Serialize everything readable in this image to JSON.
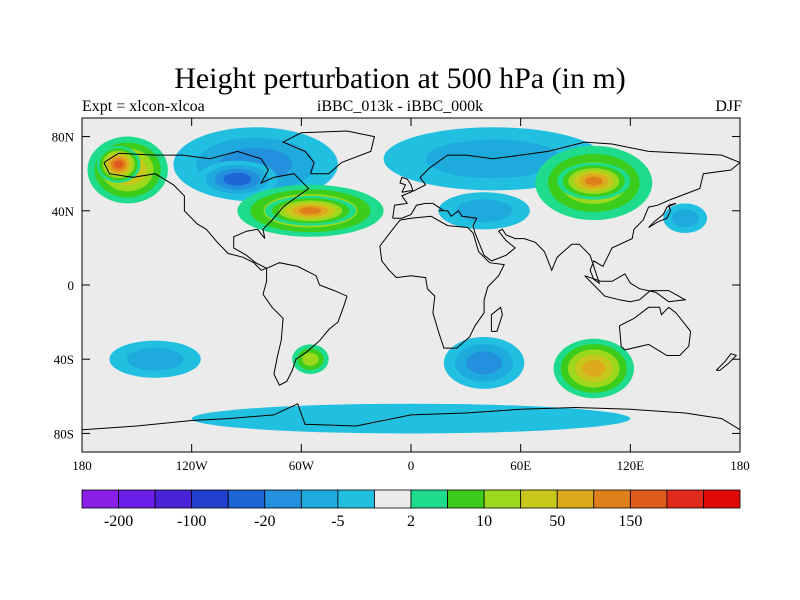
{
  "title": "Height perturbation at 500 hPa (in m)",
  "subtitle_left": "Expt = xlcon-xlcoa",
  "subtitle_center": "iBBC_013k - iBBC_000k",
  "subtitle_right": "DJF",
  "lat_ticks": [
    {
      "label": "80N",
      "lat": 80
    },
    {
      "label": "40N",
      "lat": 40
    },
    {
      "label": "0",
      "lat": 0
    },
    {
      "label": "40S",
      "lat": -40
    },
    {
      "label": "80S",
      "lat": -80
    }
  ],
  "lon_ticks": [
    {
      "label": "180",
      "lon": -180
    },
    {
      "label": "120W",
      "lon": -120
    },
    {
      "label": "60W",
      "lon": -60
    },
    {
      "label": "0",
      "lon": 0
    },
    {
      "label": "60E",
      "lon": 60
    },
    {
      "label": "120E",
      "lon": 120
    },
    {
      "label": "180",
      "lon": 180
    }
  ],
  "colorbar": {
    "colors": [
      "#8a1fe8",
      "#6a1ee8",
      "#4a22d8",
      "#2240d0",
      "#1e66d8",
      "#2290dc",
      "#1eaadc",
      "#22c0e0",
      "#ebebeb",
      "#1edc8c",
      "#3ccc1c",
      "#9cd81c",
      "#c8c81c",
      "#dcaa1c",
      "#e0801c",
      "#e05a1c",
      "#e02a1c",
      "#e00a0a"
    ],
    "labels": [
      {
        "text": "-200",
        "boundary": 1
      },
      {
        "text": "-100",
        "boundary": 3
      },
      {
        "text": "-20",
        "boundary": 5
      },
      {
        "text": "-5",
        "boundary": 7
      },
      {
        "text": "2",
        "boundary": 9
      },
      {
        "text": "10",
        "boundary": 11
      },
      {
        "text": "50",
        "boundary": 13
      },
      {
        "text": "150",
        "boundary": 15
      }
    ]
  },
  "field_regions": [
    {
      "name": "north-pacific-high",
      "lon": -155,
      "lat": 62,
      "rx": 22,
      "ry": 18,
      "level": 5
    },
    {
      "name": "north-pacific-high-core",
      "lon": -160,
      "lat": 65,
      "rx": 12,
      "ry": 10,
      "level": 7
    },
    {
      "name": "canada-low",
      "lon": -85,
      "lat": 65,
      "rx": 45,
      "ry": 20,
      "level": -3
    },
    {
      "name": "canada-low-core",
      "lon": -95,
      "lat": 57,
      "rx": 22,
      "ry": 10,
      "level": -4
    },
    {
      "name": "north-atlantic-high",
      "lon": -55,
      "lat": 40,
      "rx": 40,
      "ry": 14,
      "level": 5
    },
    {
      "name": "north-atlantic-high-core",
      "lon": -55,
      "lat": 40,
      "rx": 25,
      "ry": 8,
      "level": 6
    },
    {
      "name": "eurasia-low",
      "lon": 45,
      "lat": 68,
      "rx": 60,
      "ry": 17,
      "level": -2
    },
    {
      "name": "europe-low",
      "lon": 40,
      "lat": 40,
      "rx": 25,
      "ry": 10,
      "level": -2
    },
    {
      "name": "siberia-high",
      "lon": 100,
      "lat": 55,
      "rx": 32,
      "ry": 20,
      "level": 4
    },
    {
      "name": "siberia-high-core",
      "lon": 100,
      "lat": 56,
      "rx": 20,
      "ry": 10,
      "level": 6
    },
    {
      "name": "west-pacific-low",
      "lon": 150,
      "lat": 36,
      "rx": 12,
      "ry": 8,
      "level": -2
    },
    {
      "name": "southern-pacific-low",
      "lon": -140,
      "lat": -40,
      "rx": 25,
      "ry": 10,
      "level": -2
    },
    {
      "name": "south-atlantic-high",
      "lon": -55,
      "lat": -40,
      "rx": 10,
      "ry": 8,
      "level": 3
    },
    {
      "name": "indian-ocean-low",
      "lon": 40,
      "lat": -42,
      "rx": 22,
      "ry": 14,
      "level": -3
    },
    {
      "name": "south-indian-high",
      "lon": 100,
      "lat": -45,
      "rx": 22,
      "ry": 16,
      "level": 5
    },
    {
      "name": "antarctic-margin",
      "lon": 0,
      "lat": -72,
      "rx": 120,
      "ry": 8,
      "level": -1
    }
  ]
}
